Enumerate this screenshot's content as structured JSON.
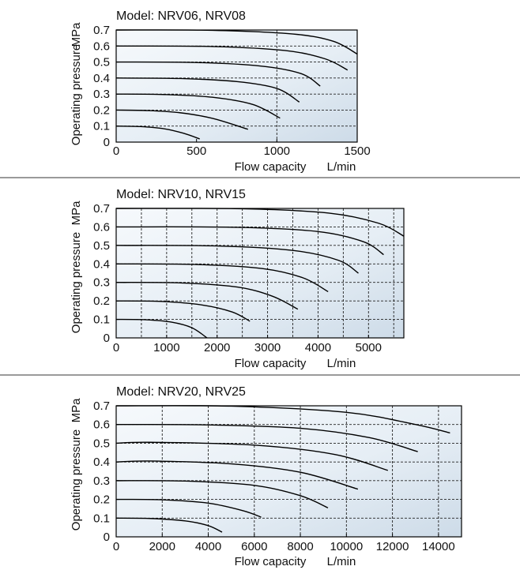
{
  "ylabel": "Operating pressure",
  "yunit": "MPa",
  "xlabel": "Flow capacity",
  "xunit": "L/min",
  "chart_data": [
    {
      "type": "line",
      "title": "Model: NRV06, NRV08",
      "xlabel": "Flow capacity",
      "xunit": "L/min",
      "ylabel": "Operating pressure",
      "yunit": "MPa",
      "xlim": [
        0,
        1500
      ],
      "ylim": [
        0,
        0.7
      ],
      "xticks": [
        "0",
        "500",
        "1000",
        "1500"
      ],
      "yticks": [
        "0",
        "0.1",
        "0.2",
        "0.3",
        "0.4",
        "0.5",
        "0.6",
        "0.7"
      ],
      "vgrid": [
        1000
      ],
      "series": [
        {
          "points": [
            [
              0,
              0.1
            ],
            [
              150,
              0.097
            ],
            [
              300,
              0.083
            ],
            [
              420,
              0.055
            ],
            [
              520,
              0.02
            ]
          ]
        },
        {
          "points": [
            [
              0,
              0.2
            ],
            [
              200,
              0.197
            ],
            [
              400,
              0.183
            ],
            [
              600,
              0.148
            ],
            [
              820,
              0.08
            ]
          ]
        },
        {
          "points": [
            [
              0,
              0.3
            ],
            [
              300,
              0.297
            ],
            [
              600,
              0.28
            ],
            [
              850,
              0.235
            ],
            [
              1020,
              0.15
            ]
          ]
        },
        {
          "points": [
            [
              0,
              0.4
            ],
            [
              400,
              0.397
            ],
            [
              750,
              0.378
            ],
            [
              1000,
              0.335
            ],
            [
              1140,
              0.25
            ]
          ]
        },
        {
          "points": [
            [
              0,
              0.5
            ],
            [
              500,
              0.497
            ],
            [
              900,
              0.475
            ],
            [
              1150,
              0.428
            ],
            [
              1270,
              0.35
            ]
          ]
        },
        {
          "points": [
            [
              0,
              0.6
            ],
            [
              600,
              0.597
            ],
            [
              1050,
              0.572
            ],
            [
              1300,
              0.52
            ],
            [
              1440,
              0.45
            ]
          ]
        },
        {
          "points": [
            [
              0,
              0.7
            ],
            [
              600,
              0.698
            ],
            [
              1100,
              0.675
            ],
            [
              1350,
              0.63
            ],
            [
              1500,
              0.55
            ]
          ]
        }
      ]
    },
    {
      "type": "line",
      "title": "Model: NRV10, NRV15",
      "xlabel": "Flow capacity",
      "xunit": "L/min",
      "ylabel": "Operating pressure",
      "yunit": "MPa",
      "xlim": [
        0,
        5700
      ],
      "ylim": [
        0,
        0.7
      ],
      "xticks": [
        "0",
        "1000",
        "2000",
        "3000",
        "4000",
        "5000"
      ],
      "yticks": [
        "0",
        "0.1",
        "0.2",
        "0.3",
        "0.4",
        "0.5",
        "0.6",
        "0.7"
      ],
      "vgrid": [
        500,
        1000,
        1500,
        2000,
        2500,
        3000,
        3500,
        4000,
        4500,
        5000,
        5500
      ],
      "series": [
        {
          "points": [
            [
              0,
              0.1
            ],
            [
              600,
              0.098
            ],
            [
              1100,
              0.085
            ],
            [
              1500,
              0.055
            ],
            [
              1800,
              0.0
            ]
          ]
        },
        {
          "points": [
            [
              0,
              0.2
            ],
            [
              900,
              0.197
            ],
            [
              1700,
              0.178
            ],
            [
              2300,
              0.14
            ],
            [
              2650,
              0.09
            ]
          ]
        },
        {
          "points": [
            [
              0,
              0.3
            ],
            [
              1300,
              0.297
            ],
            [
              2400,
              0.275
            ],
            [
              3100,
              0.225
            ],
            [
              3600,
              0.155
            ]
          ]
        },
        {
          "points": [
            [
              0,
              0.4
            ],
            [
              1600,
              0.397
            ],
            [
              2900,
              0.375
            ],
            [
              3700,
              0.325
            ],
            [
              4200,
              0.25
            ]
          ]
        },
        {
          "points": [
            [
              0,
              0.5
            ],
            [
              2000,
              0.497
            ],
            [
              3500,
              0.473
            ],
            [
              4400,
              0.42
            ],
            [
              4800,
              0.35
            ]
          ]
        },
        {
          "points": [
            [
              0,
              0.6
            ],
            [
              2400,
              0.598
            ],
            [
              4000,
              0.575
            ],
            [
              4900,
              0.52
            ],
            [
              5300,
              0.45
            ]
          ]
        },
        {
          "points": [
            [
              0,
              0.7
            ],
            [
              2500,
              0.698
            ],
            [
              4200,
              0.675
            ],
            [
              5200,
              0.62
            ],
            [
              5700,
              0.55
            ]
          ]
        }
      ]
    },
    {
      "type": "line",
      "title": "Model: NRV20, NRV25",
      "xlabel": "Flow capacity",
      "xunit": "L/min",
      "ylabel": "Operating pressure",
      "yunit": "MPa",
      "xlim": [
        0,
        15000
      ],
      "ylim": [
        0,
        0.7
      ],
      "xticks": [
        "0",
        "2000",
        "4000",
        "6000",
        "8000",
        "10000",
        "12000",
        "14000"
      ],
      "yticks": [
        "0",
        "0.1",
        "0.2",
        "0.3",
        "0.4",
        "0.5",
        "0.6",
        "0.7"
      ],
      "vgrid": [
        2000,
        4000,
        6000,
        8000,
        10000,
        12000,
        14000
      ],
      "series": [
        {
          "points": [
            [
              0,
              0.1
            ],
            [
              1500,
              0.098
            ],
            [
              3000,
              0.085
            ],
            [
              4000,
              0.06
            ],
            [
              4600,
              0.025
            ]
          ]
        },
        {
          "points": [
            [
              0,
              0.2
            ],
            [
              2000,
              0.198
            ],
            [
              4000,
              0.18
            ],
            [
              5500,
              0.14
            ],
            [
              6300,
              0.105
            ]
          ]
        },
        {
          "points": [
            [
              0,
              0.3
            ],
            [
              3000,
              0.298
            ],
            [
              6000,
              0.275
            ],
            [
              8000,
              0.22
            ],
            [
              9200,
              0.155
            ]
          ]
        },
        {
          "points": [
            [
              0,
              0.4
            ],
            [
              1500,
              0.405
            ],
            [
              5000,
              0.39
            ],
            [
              8000,
              0.345
            ],
            [
              10500,
              0.255
            ]
          ]
        },
        {
          "points": [
            [
              0,
              0.5
            ],
            [
              1500,
              0.505
            ],
            [
              6000,
              0.49
            ],
            [
              9500,
              0.44
            ],
            [
              11800,
              0.355
            ]
          ]
        },
        {
          "points": [
            [
              0,
              0.6
            ],
            [
              4000,
              0.598
            ],
            [
              8000,
              0.58
            ],
            [
              11000,
              0.53
            ],
            [
              13100,
              0.455
            ]
          ]
        },
        {
          "points": [
            [
              0,
              0.7
            ],
            [
              5000,
              0.698
            ],
            [
              10000,
              0.665
            ],
            [
              13000,
              0.6
            ],
            [
              14500,
              0.555
            ]
          ]
        }
      ]
    }
  ]
}
